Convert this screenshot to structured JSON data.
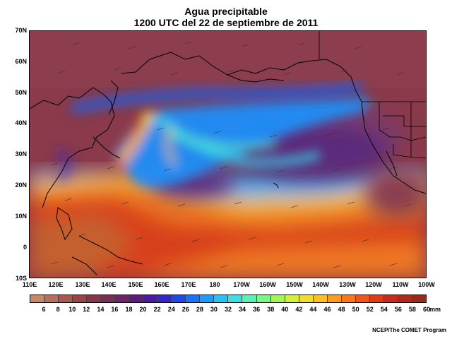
{
  "title": "Agua precipitable",
  "subtitle": "1200 UTC del 22 de septiembre de 2011",
  "lat_labels": [
    "70N",
    "60N",
    "50N",
    "40N",
    "30N",
    "20N",
    "10N",
    "0",
    "10S"
  ],
  "lon_labels": [
    "110E",
    "120E",
    "130E",
    "140E",
    "150E",
    "160E",
    "170E",
    "180",
    "170W",
    "160W",
    "150W",
    "140W",
    "130W",
    "120W",
    "110W",
    "100W"
  ],
  "colorbar": {
    "labels": [
      "6",
      "8",
      "10",
      "12",
      "14",
      "16",
      "18",
      "20",
      "22",
      "24",
      "26",
      "28",
      "30",
      "32",
      "34",
      "36",
      "38",
      "40",
      "42",
      "44",
      "46",
      "48",
      "50",
      "52",
      "54",
      "56",
      "58",
      "60"
    ],
    "units": "mm",
    "colors": [
      "#c9886a",
      "#b8705c",
      "#a8584e",
      "#984644",
      "#86384a",
      "#7a2e56",
      "#6e2468",
      "#5c1c80",
      "#4a1aa0",
      "#3626c8",
      "#2248e6",
      "#1a72f4",
      "#1a9ef8",
      "#24c4f4",
      "#3ce0e2",
      "#5af0b6",
      "#7cf486",
      "#a6f45a",
      "#d2f03c",
      "#f0de2e",
      "#fcc024",
      "#fc9c1e",
      "#f8781c",
      "#ee561a",
      "#dc3c1a",
      "#c62c1a",
      "#ae2a1a",
      "#962a1c"
    ]
  },
  "credit": "NCEP/The COMET Program"
}
